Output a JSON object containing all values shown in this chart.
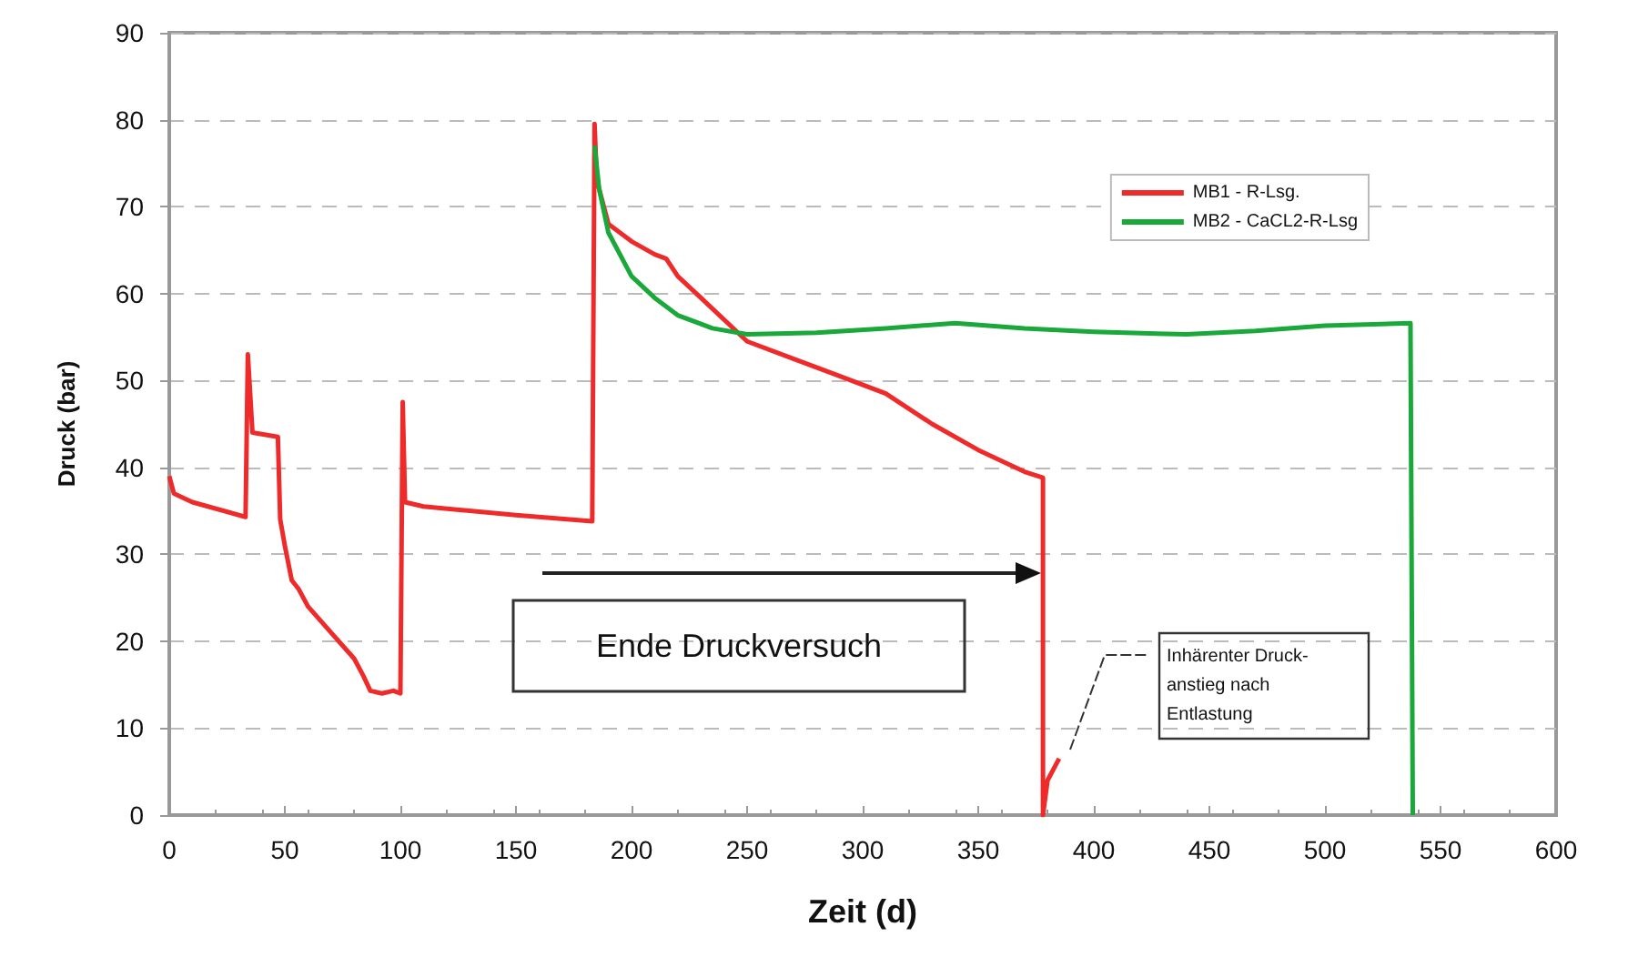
{
  "chart_data": {
    "type": "line",
    "xlabel": "Zeit (d)",
    "ylabel": "Druck (bar)",
    "xlim": [
      0,
      600
    ],
    "xticks": [
      0,
      50,
      100,
      150,
      200,
      250,
      300,
      350,
      400,
      450,
      500,
      550,
      600
    ],
    "ylim": [
      0,
      90
    ],
    "yticks": [
      0,
      10,
      20,
      30,
      40,
      50,
      60,
      70,
      80,
      90
    ],
    "grid": "y",
    "legend": "top right",
    "marker": "none",
    "line_style": "solid",
    "series": [
      {
        "name": "MB1 - R-Lsg.",
        "color": "#ee2a2a",
        "x": [
          0,
          2,
          10,
          33,
          34,
          36,
          47,
          48,
          50,
          53,
          56,
          60,
          70,
          80,
          84,
          87,
          92,
          97,
          100,
          101,
          102,
          110,
          150,
          183,
          184,
          185,
          190,
          200,
          210,
          215,
          220,
          230,
          250,
          270,
          290,
          310,
          330,
          350,
          370,
          378,
          378,
          380,
          385
        ],
        "values": [
          39,
          37,
          36,
          34.3,
          53,
          44,
          43.5,
          34,
          31,
          27,
          26,
          24,
          21,
          18,
          16,
          14.3,
          14,
          14.3,
          14,
          47.5,
          36,
          35.5,
          34.5,
          33.8,
          79.5,
          73,
          68,
          66,
          64.5,
          64,
          62,
          59.5,
          54.5,
          52.5,
          50.5,
          48.5,
          45,
          42,
          39.5,
          38.8,
          0,
          4,
          6.5
        ]
      },
      {
        "name": "MB2 - CaCL2-R-Lsg",
        "color": "#1aa83a",
        "x": [
          184,
          186,
          190,
          200,
          210,
          220,
          235,
          250,
          280,
          310,
          340,
          370,
          400,
          440,
          470,
          500,
          537,
          538
        ],
        "values": [
          77,
          72,
          67,
          62,
          59.5,
          57.5,
          56,
          55.3,
          55.5,
          56,
          56.6,
          56,
          55.6,
          55.3,
          55.7,
          56.3,
          56.6,
          0
        ]
      }
    ],
    "annotations": [
      "Ende Druckversuch",
      "Inhärenter Druck-\nanstieg nach\nEntlastung"
    ]
  }
}
